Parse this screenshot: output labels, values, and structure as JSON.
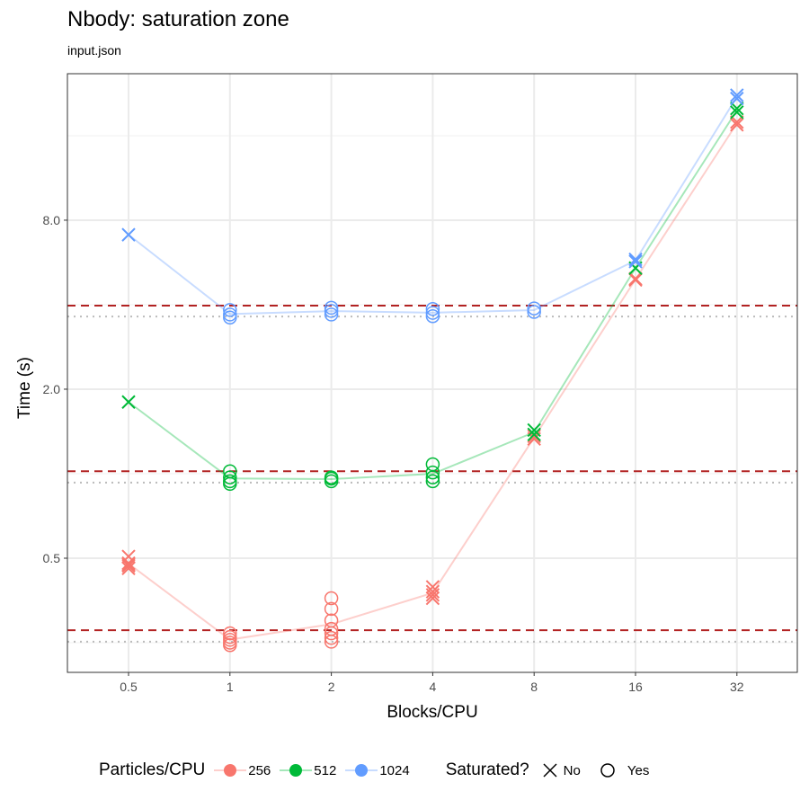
{
  "chart_data": {
    "type": "line",
    "title": "Nbody: saturation zone",
    "subtitle": "input.json",
    "xlabel": "Blocks/CPU",
    "ylabel": "Time (s)",
    "x_categories": [
      "0.5",
      "1",
      "2",
      "4",
      "8",
      "16",
      "32"
    ],
    "y_scale": "log2",
    "ylim": [
      0.196,
      26.6
    ],
    "y_ticks": [
      0.5,
      2.0,
      8.0
    ],
    "y_tick_labels": [
      "0.5",
      "2.0",
      "8.0"
    ],
    "grid": true,
    "legend_position": "bottom",
    "series": [
      {
        "name": "256",
        "color": "#F8766D",
        "points": [
          {
            "x": "0.5",
            "saturated": "No",
            "values": [
              0.507,
              0.48,
              0.475,
              0.47,
              0.46
            ]
          },
          {
            "x": "1",
            "saturated": "Yes",
            "values": [
              0.27,
              0.262,
              0.256,
              0.25,
              0.245
            ]
          },
          {
            "x": "2",
            "saturated": "Yes",
            "values": [
              0.36,
              0.33,
              0.3,
              0.28,
              0.27,
              0.26,
              0.252
            ]
          },
          {
            "x": "4",
            "saturated": "No",
            "values": [
              0.395,
              0.38,
              0.37,
              0.36
            ]
          },
          {
            "x": "8",
            "saturated": "No",
            "values": [
              1.36,
              1.33
            ]
          },
          {
            "x": "16",
            "saturated": "No",
            "values": [
              4.9,
              4.95
            ]
          },
          {
            "x": "32",
            "saturated": "No",
            "values": [
              17.5,
              17.9
            ]
          }
        ]
      },
      {
        "name": "512",
        "color": "#00BA38",
        "points": [
          {
            "x": "0.5",
            "saturated": "No",
            "values": [
              1.8
            ]
          },
          {
            "x": "1",
            "saturated": "Yes",
            "values": [
              1.02,
              0.97,
              0.94,
              0.92
            ]
          },
          {
            "x": "2",
            "saturated": "Yes",
            "values": [
              0.97,
              0.96,
              0.94
            ]
          },
          {
            "x": "4",
            "saturated": "Yes",
            "values": [
              1.08,
              1.01,
              0.97,
              0.94
            ]
          },
          {
            "x": "8",
            "saturated": "No",
            "values": [
              1.43,
              1.38
            ]
          },
          {
            "x": "16",
            "saturated": "No",
            "values": [
              5.4
            ]
          },
          {
            "x": "32",
            "saturated": "No",
            "values": [
              20.0,
              19.4
            ]
          }
        ]
      },
      {
        "name": "1024",
        "color": "#619CFF",
        "points": [
          {
            "x": "0.5",
            "saturated": "No",
            "values": [
              7.1
            ]
          },
          {
            "x": "1",
            "saturated": "Yes",
            "values": [
              3.83,
              3.69,
              3.6
            ]
          },
          {
            "x": "2",
            "saturated": "Yes",
            "values": [
              3.9,
              3.8,
              3.69
            ]
          },
          {
            "x": "4",
            "saturated": "Yes",
            "values": [
              3.86,
              3.74,
              3.64
            ]
          },
          {
            "x": "8",
            "saturated": "Yes",
            "values": [
              3.88,
              3.77
            ]
          },
          {
            "x": "16",
            "saturated": "No",
            "values": [
              5.8,
              5.7
            ]
          },
          {
            "x": "32",
            "saturated": "No",
            "values": [
              22.3,
              21.7
            ]
          }
        ]
      }
    ],
    "hlines_dashed": {
      "color": "#B22222",
      "values": [
        3.97,
        1.02,
        0.277
      ]
    },
    "hlines_dotted": {
      "color": "#BBBBBB",
      "values": [
        3.63,
        0.93,
        0.252
      ]
    },
    "legend": {
      "color_title": "Particles/CPU",
      "color_entries": [
        "256",
        "512",
        "1024"
      ],
      "shape_title": "Saturated?",
      "shape_entries": [
        "No",
        "Yes"
      ]
    }
  }
}
